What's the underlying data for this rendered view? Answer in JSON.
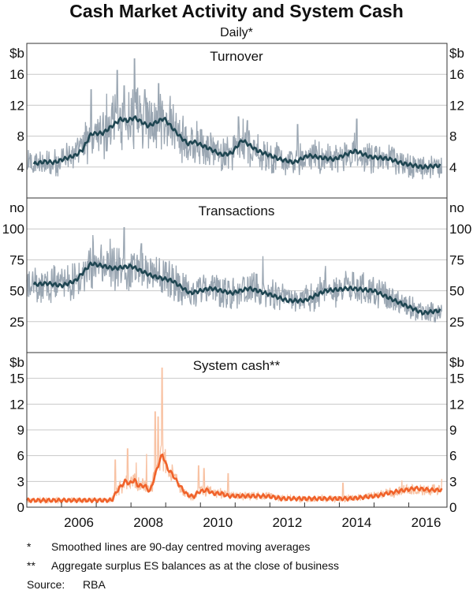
{
  "chart_data": {
    "type": "line",
    "title": "Cash Market Activity and System Cash",
    "subtitle": "Daily*",
    "x_range": [
      2005,
      2017.1
    ],
    "x_ticks": [
      2006,
      2007,
      2008,
      2009,
      2010,
      2011,
      2012,
      2013,
      2014,
      2015,
      2016
    ],
    "x_tick_labels": [
      "2006",
      "2008",
      "2010",
      "2012",
      "2014",
      "2016"
    ],
    "panels": [
      {
        "name": "Turnover",
        "unit": "$b",
        "ylim": [
          0,
          20
        ],
        "y_ticks": [
          "4",
          "8",
          "12",
          "16"
        ],
        "y_tick_values": [
          4,
          8,
          12,
          16
        ],
        "daily_color": "#9aa6b2",
        "smooth_color": "#1f4652",
        "daily_spread": 0.32,
        "daily_spikes": [
          [
            2006.85,
            14
          ],
          [
            2007.3,
            13.5
          ],
          [
            2007.6,
            16.5
          ],
          [
            2007.8,
            14.5
          ],
          [
            2008.1,
            18
          ],
          [
            2008.4,
            14
          ],
          [
            2008.8,
            14.8
          ],
          [
            2009.3,
            11
          ],
          [
            2011.1,
            10.5
          ],
          [
            2011.35,
            10
          ],
          [
            2012.8,
            9.5
          ],
          [
            2014.5,
            10.2
          ]
        ],
        "smoothed": [
          [
            2005.2,
            4.4
          ],
          [
            2005.5,
            4.7
          ],
          [
            2005.8,
            4.6
          ],
          [
            2006.1,
            5.1
          ],
          [
            2006.4,
            5.5
          ],
          [
            2006.6,
            6.2
          ],
          [
            2006.85,
            8.3
          ],
          [
            2007.2,
            8.4
          ],
          [
            2007.7,
            10.2
          ],
          [
            2007.9,
            10.0
          ],
          [
            2008.1,
            10.4
          ],
          [
            2008.5,
            9.3
          ],
          [
            2008.95,
            10.3
          ],
          [
            2009.4,
            8.0
          ],
          [
            2009.65,
            7.0
          ],
          [
            2009.8,
            7.3
          ],
          [
            2010.2,
            6.5
          ],
          [
            2010.6,
            5.6
          ],
          [
            2010.9,
            5.8
          ],
          [
            2011.2,
            7.5
          ],
          [
            2011.65,
            6.1
          ],
          [
            2012.3,
            5.0
          ],
          [
            2012.7,
            4.6
          ],
          [
            2013.1,
            5.5
          ],
          [
            2013.5,
            5.2
          ],
          [
            2013.85,
            5.0
          ],
          [
            2014.45,
            6.1
          ],
          [
            2014.9,
            5.3
          ],
          [
            2015.4,
            5.1
          ],
          [
            2015.8,
            4.5
          ],
          [
            2016.4,
            4.0
          ],
          [
            2016.9,
            4.2
          ]
        ]
      },
      {
        "name": "Transactions",
        "unit": "no",
        "ylim": [
          0,
          125
        ],
        "y_ticks": [
          "25",
          "50",
          "75",
          "100"
        ],
        "y_tick_values": [
          25,
          50,
          75,
          100
        ],
        "daily_color": "#9aa6b2",
        "smooth_color": "#1f4652",
        "daily_spread": 0.22,
        "daily_spikes": [
          [
            2006.9,
            95
          ],
          [
            2007.4,
            92
          ],
          [
            2007.8,
            101
          ],
          [
            2008.3,
            88
          ],
          [
            2011.8,
            78
          ],
          [
            2013.6,
            70
          ]
        ],
        "smoothed": [
          [
            2005.2,
            55
          ],
          [
            2005.6,
            56
          ],
          [
            2006.0,
            54
          ],
          [
            2006.4,
            58
          ],
          [
            2006.85,
            72
          ],
          [
            2007.2,
            70
          ],
          [
            2007.5,
            68
          ],
          [
            2008.0,
            70
          ],
          [
            2008.6,
            62
          ],
          [
            2009.2,
            58
          ],
          [
            2009.7,
            48
          ],
          [
            2010.3,
            52
          ],
          [
            2010.9,
            48
          ],
          [
            2011.4,
            52
          ],
          [
            2012.0,
            47
          ],
          [
            2012.5,
            42
          ],
          [
            2013.0,
            42
          ],
          [
            2013.6,
            50
          ],
          [
            2014.3,
            52
          ],
          [
            2015.0,
            50
          ],
          [
            2015.6,
            42
          ],
          [
            2016.4,
            32
          ],
          [
            2016.9,
            34
          ]
        ]
      },
      {
        "name": "System cash**",
        "unit": "$b",
        "ylim": [
          0,
          18
        ],
        "y_ticks": [
          "0",
          "3",
          "6",
          "9",
          "12",
          "15"
        ],
        "y_tick_values": [
          0,
          3,
          6,
          9,
          12,
          15
        ],
        "daily_color": "#f8c2a3",
        "smooth_color": "#f0622a",
        "daily_spread": 0.3,
        "daily_spikes": [
          [
            2007.55,
            5.5
          ],
          [
            2007.9,
            6.8
          ],
          [
            2008.15,
            5.2
          ],
          [
            2008.45,
            6.2
          ],
          [
            2008.7,
            11.1
          ],
          [
            2008.78,
            10.5
          ],
          [
            2008.9,
            16.2
          ],
          [
            2009.05,
            4.6
          ],
          [
            2009.95,
            4.8
          ],
          [
            2010.1,
            4.5
          ],
          [
            2010.8,
            3.9
          ],
          [
            2014.1,
            2.8
          ],
          [
            2015.8,
            3.1
          ],
          [
            2016.95,
            3.3
          ]
        ],
        "smoothed": [
          [
            2005.0,
            0.8
          ],
          [
            2007.45,
            0.8
          ],
          [
            2007.6,
            1.9
          ],
          [
            2007.85,
            3.1
          ],
          [
            2007.95,
            2.7
          ],
          [
            2008.1,
            3.2
          ],
          [
            2008.2,
            2.5
          ],
          [
            2008.4,
            2.5
          ],
          [
            2008.55,
            1.8
          ],
          [
            2008.75,
            4.5
          ],
          [
            2008.9,
            6.2
          ],
          [
            2009.05,
            4.5
          ],
          [
            2009.2,
            3.8
          ],
          [
            2009.35,
            2.8
          ],
          [
            2009.6,
            1.5
          ],
          [
            2009.8,
            1.2
          ],
          [
            2009.95,
            1.8
          ],
          [
            2010.2,
            2.0
          ],
          [
            2010.35,
            1.6
          ],
          [
            2010.6,
            1.6
          ],
          [
            2010.8,
            1.3
          ],
          [
            2011.9,
            1.3
          ],
          [
            2012.35,
            1.0
          ],
          [
            2014.3,
            1.0
          ],
          [
            2015.05,
            1.3
          ],
          [
            2015.6,
            1.8
          ],
          [
            2016.2,
            2.2
          ],
          [
            2016.65,
            2.0
          ],
          [
            2016.95,
            2.0
          ]
        ]
      }
    ],
    "notes": [
      {
        "mark": "*",
        "text": "Smoothed lines are 90-day centred moving averages"
      },
      {
        "mark": "**",
        "text": "Aggregate surplus ES balances as at the close of business"
      }
    ],
    "source_label": "Source:",
    "source": "RBA"
  }
}
